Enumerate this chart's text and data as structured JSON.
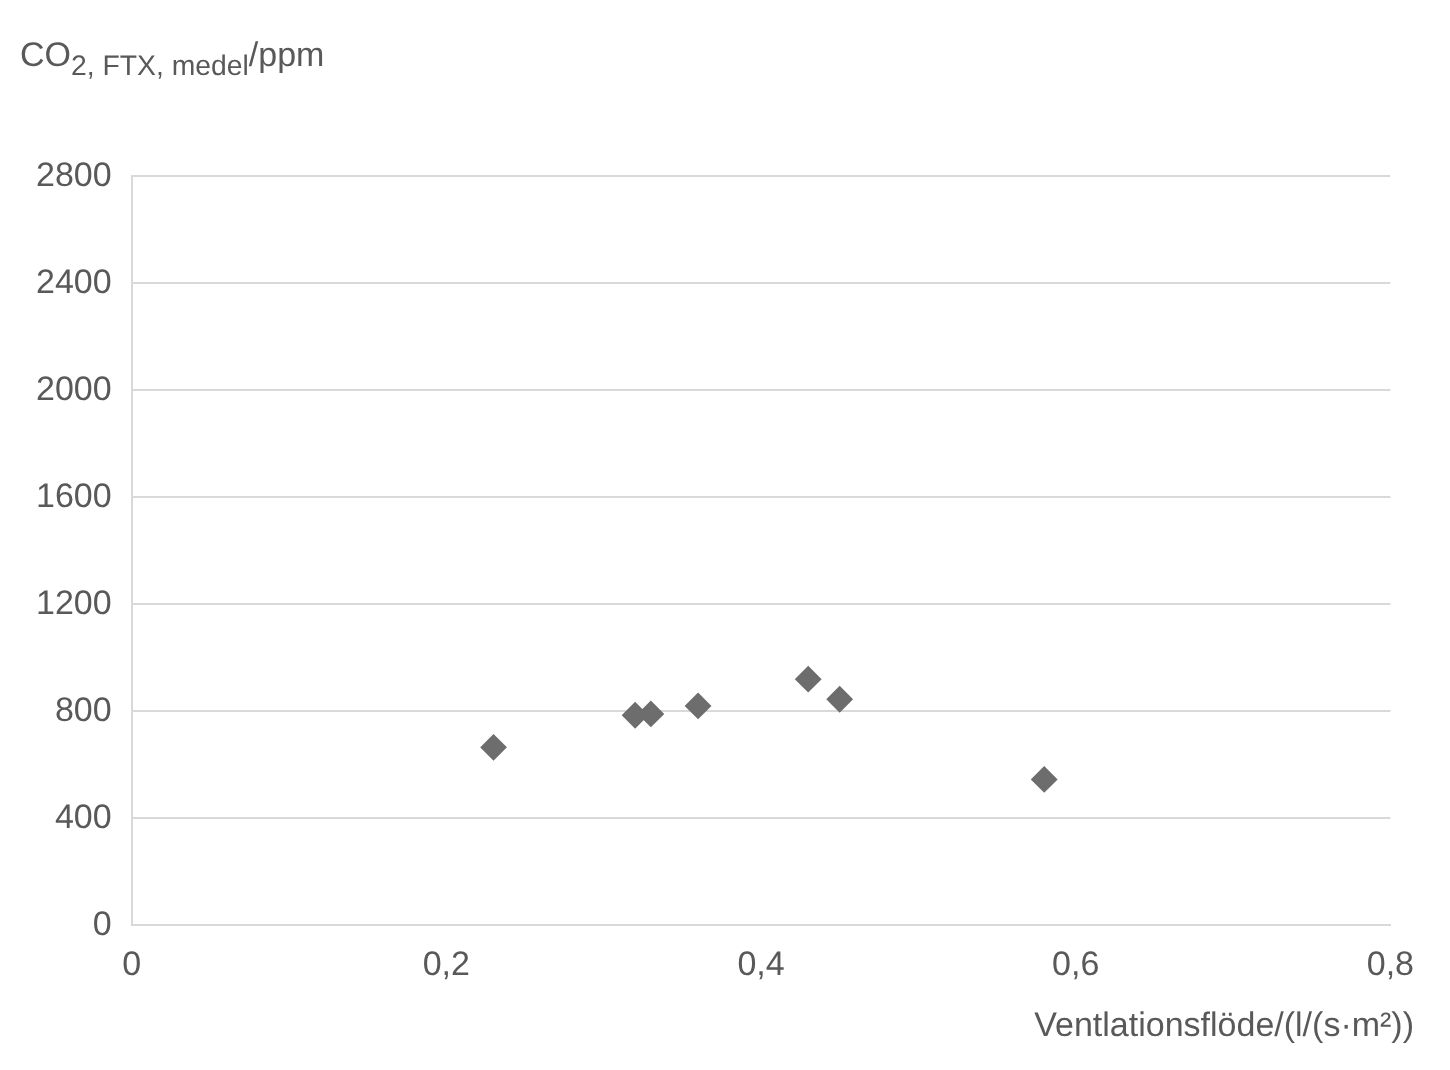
{
  "chart_data": {
    "type": "scatter",
    "xlabel": "Ventlationsflöde/(l/(s·m²))",
    "ylabel": "CO$_{2, FTX, medel}$/ppm",
    "x": [
      0.23,
      0.32,
      0.33,
      0.36,
      0.43,
      0.45,
      0.58
    ],
    "values": [
      665,
      785,
      790,
      820,
      920,
      845,
      545
    ],
    "color": "#6d6d6d",
    "marker": "diamond",
    "xlim": [
      0,
      0.8
    ],
    "xticks": [
      {
        "value": 0,
        "label": "0"
      },
      {
        "value": 0.2,
        "label": "0,2"
      },
      {
        "value": 0.4,
        "label": "0,4"
      },
      {
        "value": 0.6,
        "label": "0,6"
      },
      {
        "value": 0.8,
        "label": "0,8"
      }
    ],
    "ylim": [
      0,
      2800
    ],
    "yticks": [
      0,
      400,
      800,
      1200,
      1600,
      2000,
      2400,
      2800
    ],
    "grid": "y"
  }
}
